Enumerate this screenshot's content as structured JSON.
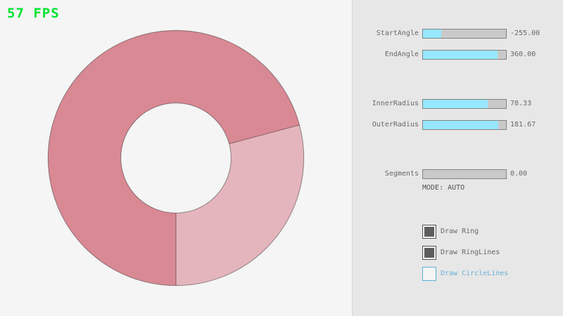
{
  "fps": {
    "label": "57 FPS",
    "color": "#00e430"
  },
  "ring": {
    "fill_overlap": "#d98994",
    "fill_single": "#e4b5bc",
    "line_color": "rgba(0,0,0,0.4)",
    "start_angle": "-255.00",
    "end_angle": "360.00",
    "inner_radius": "78.33",
    "outer_radius": "181.67"
  },
  "panel": {
    "sliders": [
      {
        "label": "StartAngle",
        "value": "-255.00",
        "fraction": 0.2167
      },
      {
        "label": "EndAngle",
        "value": "360.00",
        "fraction": 0.9
      },
      {
        "label": "InnerRadius",
        "value": "78.33",
        "fraction": 0.7833
      },
      {
        "label": "OuterRadius",
        "value": "181.67",
        "fraction": 0.9083
      },
      {
        "label": "Segments",
        "value": "0.00",
        "fraction": 0
      }
    ],
    "mode_label": "MODE: AUTO",
    "checkboxes": [
      {
        "label": "Draw Ring",
        "checked": true,
        "focused": false
      },
      {
        "label": "Draw RingLines",
        "checked": true,
        "focused": false
      },
      {
        "label": "Draw CircleLines",
        "checked": false,
        "focused": true
      }
    ]
  },
  "slider_style": {
    "fill_color": "#97e8ff",
    "track_color": "#c9c9c9",
    "border_color": "#838383"
  }
}
